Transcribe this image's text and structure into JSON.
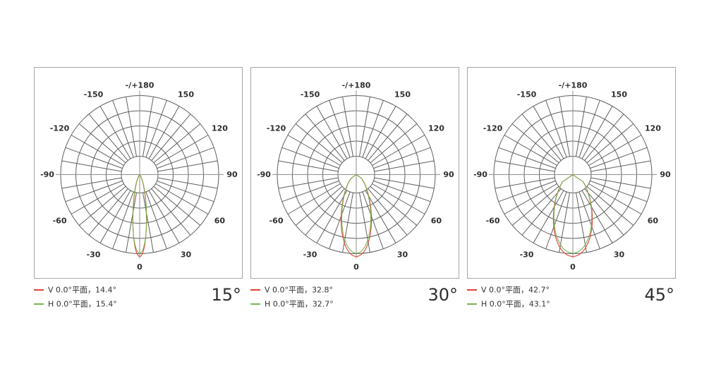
{
  "polar_grid": {
    "top_label": "-/+180",
    "tick_labels": [
      "-150",
      "-120",
      "-90",
      "-60",
      "-30",
      "0",
      "30",
      "60",
      "90",
      "120",
      "150"
    ],
    "tick_step_deg": 30,
    "spoke_step_deg": 10,
    "ring_count": 5,
    "grid_color": "#5f5f5f",
    "axis_color": "#8f8f8f",
    "label_color": "#2e2e2e",
    "frame_color": "#a6a6a6"
  },
  "panels": [
    {
      "big_label": "15°",
      "legend": [
        {
          "label": "V 0.0°平面，14.4°",
          "color": "#dc4437"
        },
        {
          "label": "H 0.0°平面，15.4°",
          "color": "#7cb450"
        }
      ]
    },
    {
      "big_label": "30°",
      "legend": [
        {
          "label": "V 0.0°平面，32.8°",
          "color": "#dc4437"
        },
        {
          "label": "H 0.0°平面，32.7°",
          "color": "#7cb450"
        }
      ]
    },
    {
      "big_label": "45°",
      "legend": [
        {
          "label": "V 0.0°平面，42.7°",
          "color": "#dc4437"
        },
        {
          "label": "H 0.0°平面，43.1°",
          "color": "#7cb450"
        }
      ]
    }
  ],
  "chart_data": [
    {
      "type": "line",
      "subtype": "polar-beam-distribution",
      "title": "15°",
      "angle_ticks_deg": [
        -180,
        -150,
        -120,
        -90,
        -60,
        -30,
        0,
        30,
        60,
        90,
        120,
        150,
        180
      ],
      "radial_rings_norm": [
        0.2,
        0.4,
        0.6,
        0.8,
        1.0
      ],
      "grid": true,
      "legend_position": "bottom-left",
      "series": [
        {
          "name": "V 0.0°平面",
          "beam_angle_deg": 14.4,
          "peak_angle_deg": 0,
          "peak_norm": 1.0,
          "color": "#dc4437"
        },
        {
          "name": "H 0.0°平面",
          "beam_angle_deg": 15.4,
          "peak_angle_deg": 0,
          "peak_norm": 0.96,
          "color": "#7cb450"
        }
      ]
    },
    {
      "type": "line",
      "subtype": "polar-beam-distribution",
      "title": "30°",
      "angle_ticks_deg": [
        -180,
        -150,
        -120,
        -90,
        -60,
        -30,
        0,
        30,
        60,
        90,
        120,
        150,
        180
      ],
      "radial_rings_norm": [
        0.2,
        0.4,
        0.6,
        0.8,
        1.0
      ],
      "grid": true,
      "legend_position": "bottom-left",
      "series": [
        {
          "name": "V 0.0°平面",
          "beam_angle_deg": 32.8,
          "peak_angle_deg": 0,
          "peak_norm": 1.0,
          "color": "#dc4437"
        },
        {
          "name": "H 0.0°平面",
          "beam_angle_deg": 32.7,
          "peak_angle_deg": 0,
          "peak_norm": 0.96,
          "color": "#7cb450"
        }
      ]
    },
    {
      "type": "line",
      "subtype": "polar-beam-distribution",
      "title": "45°",
      "angle_ticks_deg": [
        -180,
        -150,
        -120,
        -90,
        -60,
        -30,
        0,
        30,
        60,
        90,
        120,
        150,
        180
      ],
      "radial_rings_norm": [
        0.2,
        0.4,
        0.6,
        0.8,
        1.0
      ],
      "grid": true,
      "legend_position": "bottom-left",
      "series": [
        {
          "name": "V 0.0°平面",
          "beam_angle_deg": 42.7,
          "peak_angle_deg": 0,
          "peak_norm": 1.0,
          "color": "#dc4437"
        },
        {
          "name": "H 0.0°平面",
          "beam_angle_deg": 43.1,
          "peak_angle_deg": 0,
          "peak_norm": 0.96,
          "color": "#7cb450"
        }
      ]
    }
  ]
}
